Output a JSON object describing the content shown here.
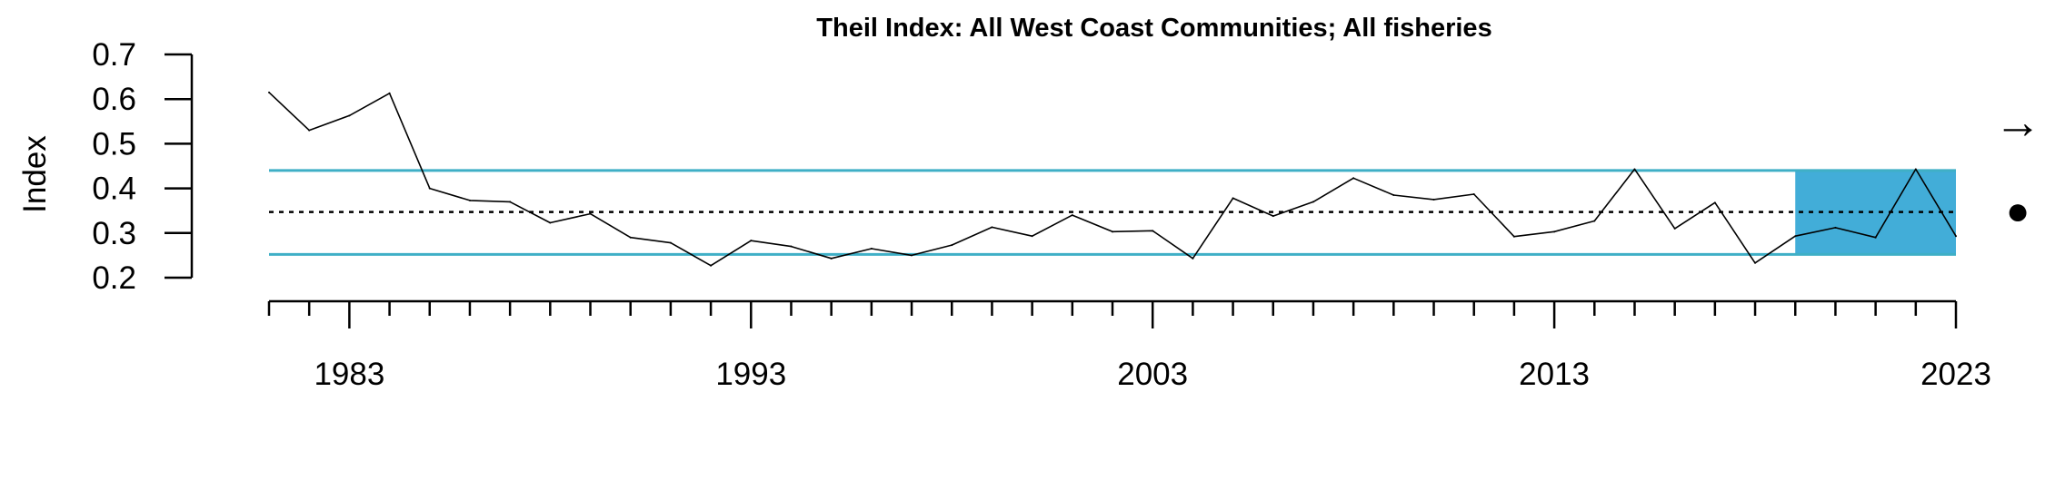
{
  "chart_data": {
    "type": "line",
    "title": "Theil Index: All West Coast Communities; All fisheries",
    "xlabel": "",
    "ylabel": "Index",
    "xlim": [
      1981,
      2023
    ],
    "ylim": [
      0.2,
      0.7
    ],
    "y_ticks": [
      "0.2",
      "0.3",
      "0.4",
      "0.5",
      "0.6",
      "0.7"
    ],
    "x_ticks": [
      "1983",
      "1993",
      "2003",
      "2013",
      "2023"
    ],
    "x": [
      1981,
      1982,
      1983,
      1984,
      1985,
      1986,
      1987,
      1988,
      1989,
      1990,
      1991,
      1992,
      1993,
      1994,
      1995,
      1996,
      1997,
      1998,
      1999,
      2000,
      2001,
      2002,
      2003,
      2004,
      2005,
      2006,
      2007,
      2008,
      2009,
      2010,
      2011,
      2012,
      2013,
      2014,
      2015,
      2016,
      2017,
      2018,
      2019,
      2020,
      2021,
      2022,
      2023
    ],
    "series": [
      {
        "values": [
          0.615,
          0.53,
          0.563,
          0.613,
          0.4,
          0.373,
          0.37,
          0.323,
          0.343,
          0.29,
          0.278,
          0.227,
          0.283,
          0.27,
          0.243,
          0.265,
          0.25,
          0.273,
          0.313,
          0.293,
          0.34,
          0.303,
          0.305,
          0.243,
          0.378,
          0.338,
          0.37,
          0.423,
          0.385,
          0.375,
          0.387,
          0.292,
          0.303,
          0.327,
          0.443,
          0.31,
          0.368,
          0.233,
          0.293,
          0.312,
          0.29,
          0.443,
          0.293
        ],
        "color": "#000000"
      }
    ],
    "mean": 0.347,
    "upper_bound": 0.44,
    "lower_bound": 0.252,
    "highlight_range": [
      2019,
      2023
    ],
    "bound_color": "#3FAFC6",
    "highlight_color": "#42ADD8",
    "trend_symbol": "→",
    "mean_symbol": "●",
    "trend_icon": "right-arrow-icon",
    "mean_icon": "filled-circle-icon"
  }
}
